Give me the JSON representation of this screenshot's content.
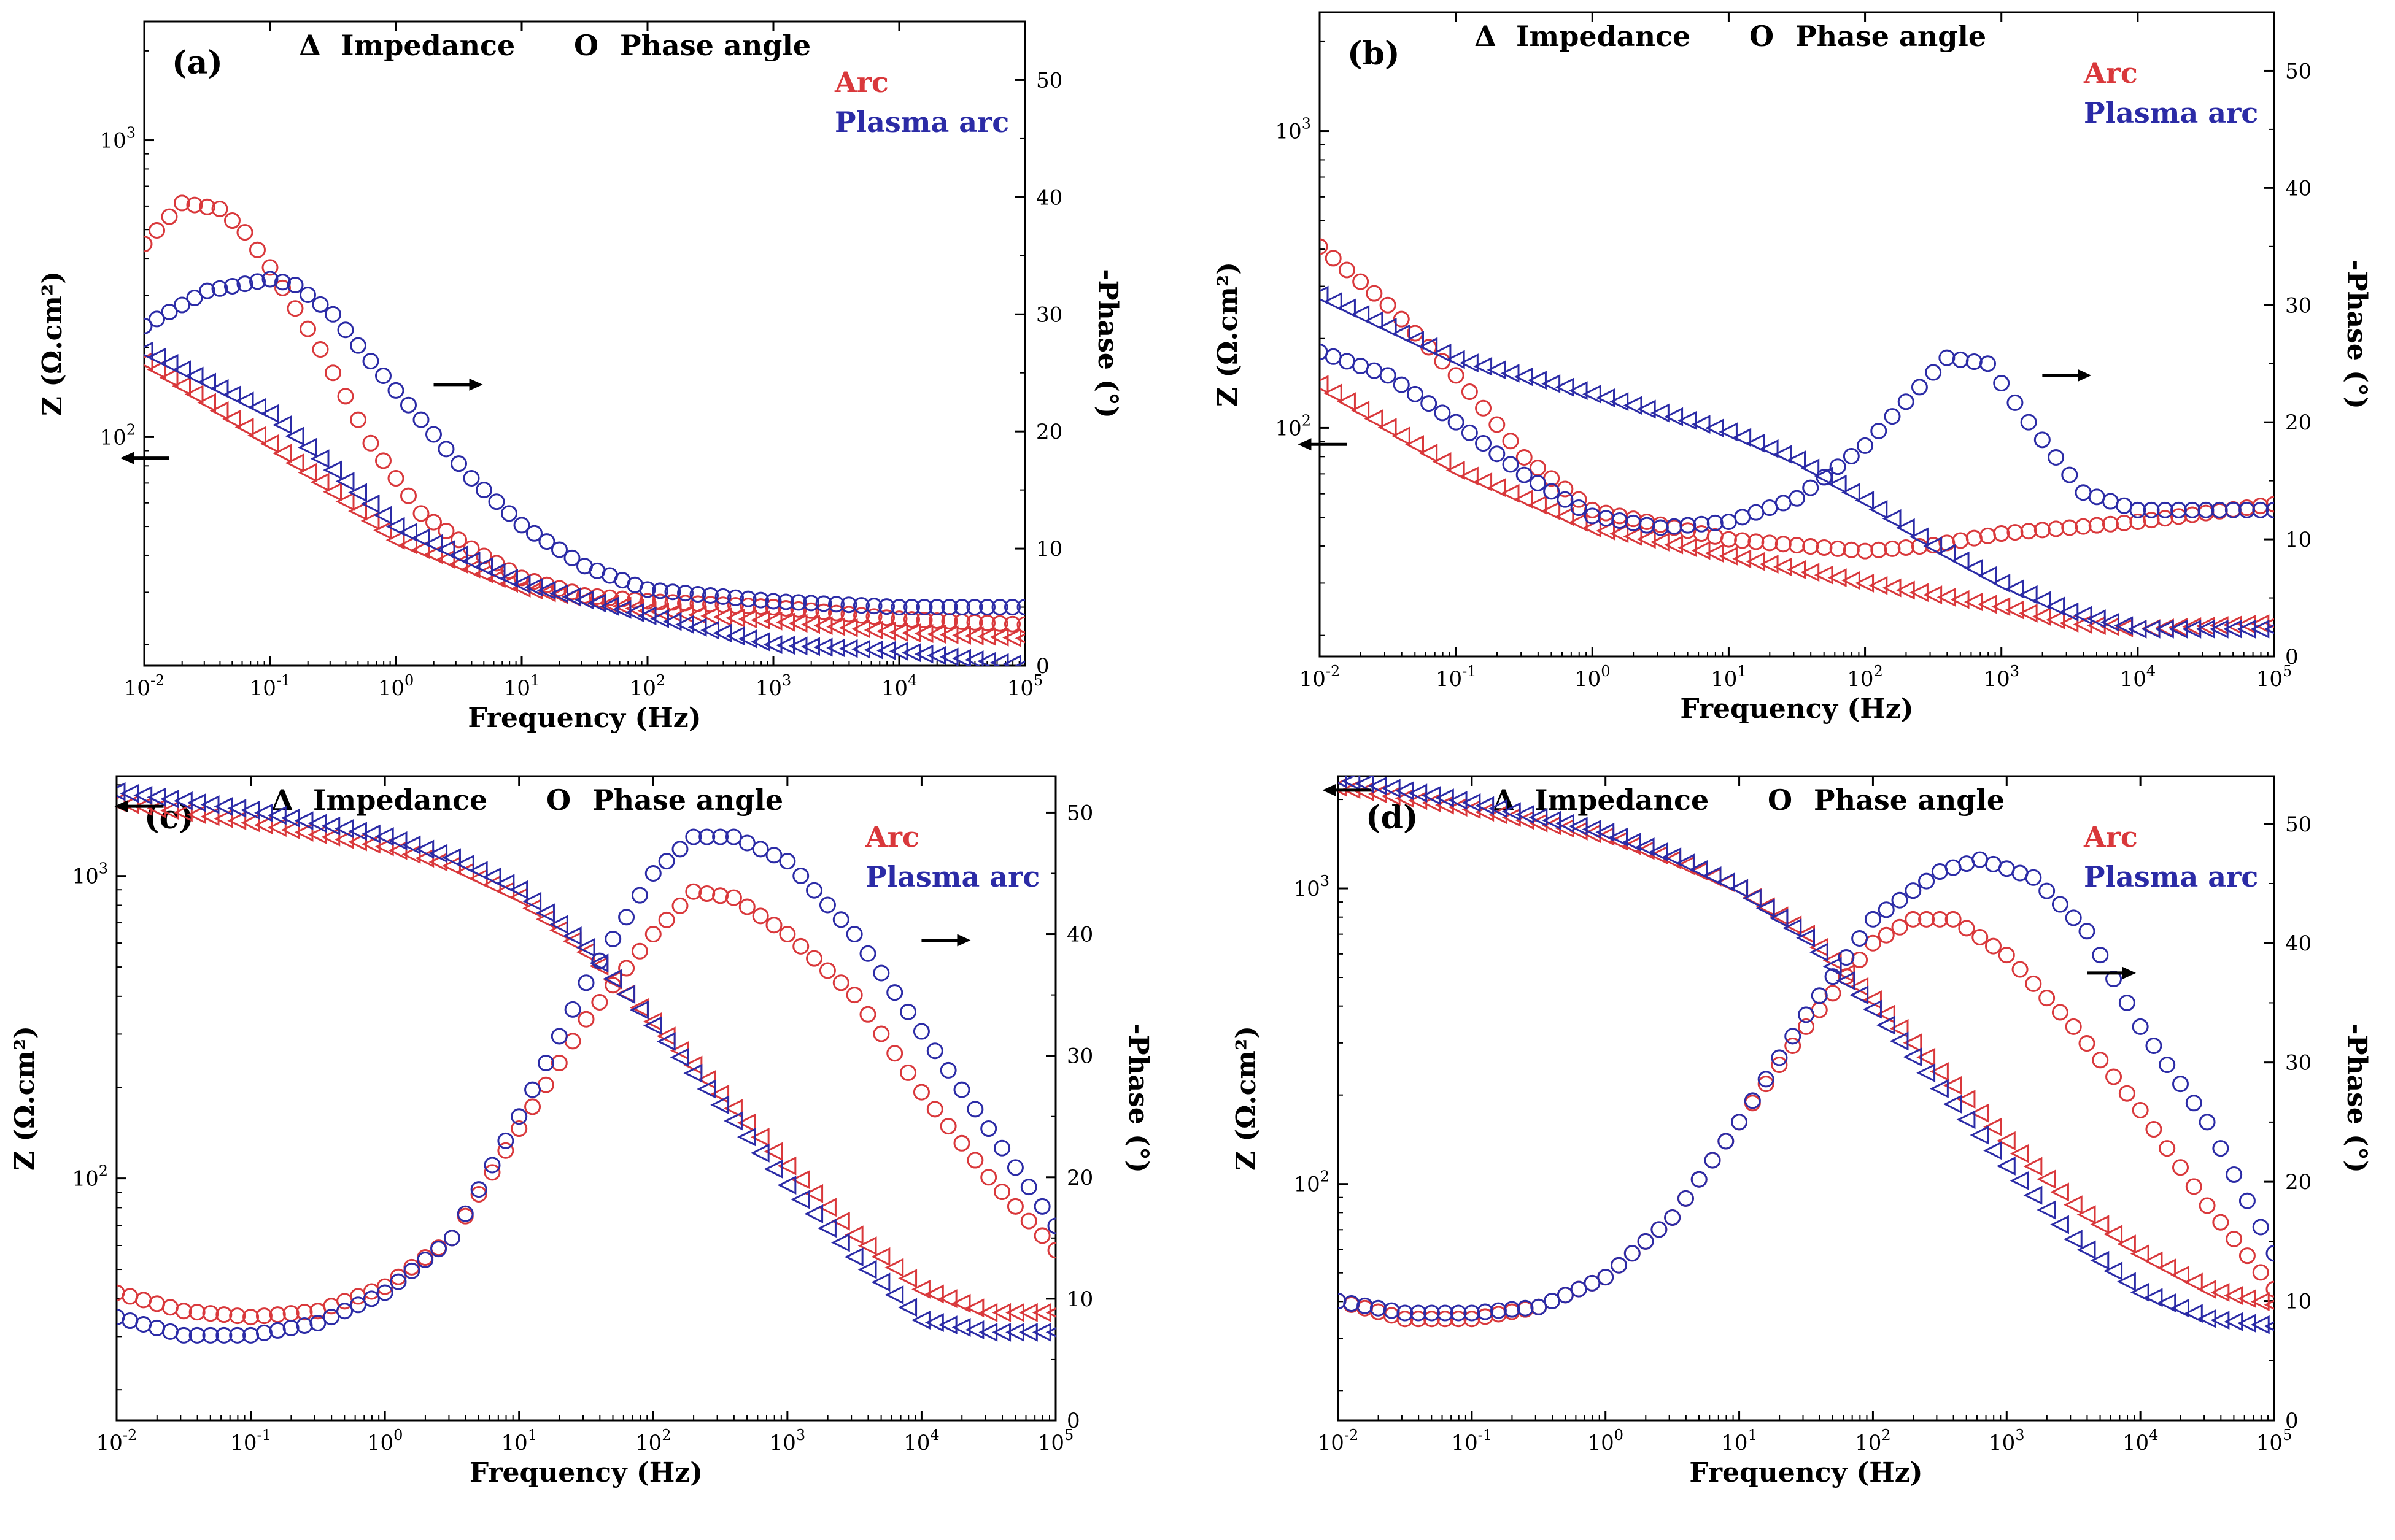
{
  "colors": {
    "arc": "#d9383b",
    "plasma_arc": "#2b2ba6",
    "axis": "#000000"
  },
  "chart_data": [
    {
      "type": "scatter",
      "panel": "(a)",
      "xlabel": "Frequency (Hz)",
      "ylabel_left": "Z (Ω.cm²)",
      "ylabel_right": "-Phase (°)",
      "xlim_log10": [
        -2,
        5
      ],
      "xticks": [
        "10-2",
        "10-1",
        "100",
        "101",
        "102",
        "103",
        "104",
        "105"
      ],
      "ylim_left_log10": [
        1.23,
        3.4
      ],
      "ylim_right": [
        0,
        55
      ],
      "yticks_left": [
        "102",
        "103"
      ],
      "yticks_right": [
        "0",
        "10",
        "20",
        "30",
        "40",
        "50"
      ],
      "legend_symbols": {
        "impedance": "Impedance",
        "phase": "Phase angle",
        "tri": "Δ",
        "circ": "O"
      },
      "series_names": {
        "arc": "Arc",
        "plasma": "Plasma arc"
      },
      "impedance": {
        "arc": [
          [
            -2,
            180
          ],
          [
            -1,
            95
          ],
          [
            0,
            45
          ],
          [
            1,
            31
          ],
          [
            2,
            26
          ],
          [
            3,
            24
          ],
          [
            4,
            22
          ],
          [
            5,
            21
          ]
        ],
        "plasma": [
          [
            -2,
            195
          ],
          [
            -1,
            120
          ],
          [
            0,
            50
          ],
          [
            1,
            32
          ],
          [
            2,
            25
          ],
          [
            3,
            20
          ],
          [
            4,
            19
          ],
          [
            5,
            17
          ]
        ]
      },
      "phase": {
        "arc": [
          [
            -2,
            36
          ],
          [
            -1.7,
            39.5
          ],
          [
            -1.4,
            39
          ],
          [
            -1.2,
            37
          ],
          [
            -1,
            34
          ],
          [
            -0.6,
            27
          ],
          [
            -0.2,
            19
          ],
          [
            0.2,
            13
          ],
          [
            0.6,
            10
          ],
          [
            1,
            7.5
          ],
          [
            1.5,
            6
          ],
          [
            2,
            5.5
          ],
          [
            3,
            5
          ],
          [
            4,
            4
          ],
          [
            5,
            3.5
          ]
        ],
        "plasma": [
          [
            -2,
            29
          ],
          [
            -1.5,
            32
          ],
          [
            -1,
            33
          ],
          [
            -0.8,
            32.5
          ],
          [
            -0.5,
            30
          ],
          [
            -0.2,
            26
          ],
          [
            0.2,
            21
          ],
          [
            0.6,
            16
          ],
          [
            1,
            12
          ],
          [
            1.5,
            8.5
          ],
          [
            2,
            6.5
          ],
          [
            3,
            5.5
          ],
          [
            4,
            5
          ],
          [
            5,
            5
          ]
        ]
      },
      "arrows": [
        {
          "dir": "left",
          "x": -1.8,
          "y": 85,
          "axis": "left"
        },
        {
          "dir": "right",
          "x": 0.3,
          "y": 24,
          "axis": "right"
        }
      ]
    },
    {
      "type": "scatter",
      "panel": "(b)",
      "xlabel": "Frequency (Hz)",
      "ylabel_left": "Z (Ω.cm²)",
      "ylabel_right": "-Phase (°)",
      "xlim_log10": [
        -2,
        5
      ],
      "xticks": [
        "10-2",
        "10-1",
        "100",
        "101",
        "102",
        "103",
        "104",
        "105"
      ],
      "ylim_left_log10": [
        1.23,
        3.4
      ],
      "ylim_right": [
        0,
        55
      ],
      "yticks_left": [
        "102",
        "103"
      ],
      "yticks_right": [
        "0",
        "10",
        "20",
        "30",
        "40",
        "50"
      ],
      "legend_symbols": {
        "impedance": "Impedance",
        "phase": "Phase angle",
        "tri": "Δ",
        "circ": "O"
      },
      "series_names": {
        "arc": "Arc",
        "plasma": "Plasma arc"
      },
      "impedance": {
        "arc": [
          [
            -2,
            140
          ],
          [
            -1,
            72
          ],
          [
            0,
            46
          ],
          [
            1,
            37
          ],
          [
            2,
            30
          ],
          [
            3,
            25
          ],
          [
            3.5,
            22
          ],
          [
            4,
            21
          ],
          [
            5,
            22
          ]
        ],
        "plasma": [
          [
            -2,
            280
          ],
          [
            -1,
            170
          ],
          [
            0,
            130
          ],
          [
            1,
            97
          ],
          [
            1.5,
            78
          ],
          [
            2,
            57
          ],
          [
            2.5,
            40
          ],
          [
            3,
            30
          ],
          [
            3.5,
            24
          ],
          [
            4,
            21
          ],
          [
            5,
            21
          ]
        ]
      },
      "phase": {
        "arc": [
          [
            -2,
            35
          ],
          [
            -1.5,
            30
          ],
          [
            -1,
            24
          ],
          [
            -0.5,
            17
          ],
          [
            0,
            12.5
          ],
          [
            1,
            10
          ],
          [
            2,
            9
          ],
          [
            2.5,
            9.5
          ],
          [
            3,
            10.5
          ],
          [
            4,
            11.5
          ],
          [
            5,
            13
          ]
        ],
        "plasma": [
          [
            -2,
            26
          ],
          [
            -1.5,
            24
          ],
          [
            -1,
            20
          ],
          [
            -0.5,
            15.5
          ],
          [
            0,
            12
          ],
          [
            0.5,
            11
          ],
          [
            1,
            11.5
          ],
          [
            1.5,
            13.5
          ],
          [
            2,
            18
          ],
          [
            2.4,
            23
          ],
          [
            2.6,
            25.5
          ],
          [
            2.9,
            25
          ],
          [
            3.2,
            20
          ],
          [
            3.6,
            14
          ],
          [
            4,
            12.5
          ],
          [
            5,
            12.5
          ]
        ]
      },
      "arrows": [
        {
          "dir": "left",
          "x": -1.8,
          "y": 88,
          "axis": "left"
        },
        {
          "dir": "right",
          "x": 3.3,
          "y": 24,
          "axis": "right"
        }
      ]
    },
    {
      "type": "scatter",
      "panel": "(c)",
      "xlabel": "Frequency (Hz)",
      "ylabel_left": "Z (Ω.cm²)",
      "ylabel_right": "-Phase (°)",
      "xlim_log10": [
        -2,
        5
      ],
      "xticks": [
        "10-2",
        "10-1",
        "100",
        "101",
        "102",
        "103",
        "104",
        "105"
      ],
      "ylim_left_log10": [
        1.2,
        3.33
      ],
      "ylim_right": [
        0,
        53
      ],
      "yticks_left": [
        "102",
        "103"
      ],
      "yticks_right": [
        "0",
        "10",
        "20",
        "30",
        "40",
        "50"
      ],
      "legend_symbols": {
        "impedance": "Impedance",
        "phase": "Phase angle",
        "tri": "Δ",
        "circ": "O"
      },
      "series_names": {
        "arc": "Arc",
        "plasma": "Plasma arc"
      },
      "impedance": {
        "arc": [
          [
            -2,
            1750
          ],
          [
            -1,
            1500
          ],
          [
            0,
            1250
          ],
          [
            0.5,
            1080
          ],
          [
            1,
            850
          ],
          [
            1.5,
            560
          ],
          [
            2,
            330
          ],
          [
            2.5,
            190
          ],
          [
            3,
            110
          ],
          [
            3.5,
            65
          ],
          [
            4,
            43
          ],
          [
            4.5,
            36
          ],
          [
            5,
            36
          ]
        ],
        "plasma": [
          [
            -2,
            1900
          ],
          [
            -1,
            1650
          ],
          [
            0,
            1350
          ],
          [
            0.5,
            1150
          ],
          [
            1,
            900
          ],
          [
            1.5,
            580
          ],
          [
            2,
            320
          ],
          [
            2.5,
            175
          ],
          [
            3,
            95
          ],
          [
            3.5,
            55
          ],
          [
            4,
            34
          ],
          [
            4.5,
            31
          ],
          [
            5,
            31
          ]
        ]
      },
      "phase": {
        "arc": [
          [
            -2,
            10.5
          ],
          [
            -1.5,
            9
          ],
          [
            -1,
            8.5
          ],
          [
            -0.5,
            9
          ],
          [
            0,
            11
          ],
          [
            0.5,
            15
          ],
          [
            1,
            24
          ],
          [
            1.5,
            33
          ],
          [
            2,
            40
          ],
          [
            2.3,
            43.5
          ],
          [
            2.6,
            43
          ],
          [
            3,
            40
          ],
          [
            3.5,
            35
          ],
          [
            4,
            27
          ],
          [
            4.5,
            20
          ],
          [
            5,
            14
          ]
        ],
        "plasma": [
          [
            -2,
            8.5
          ],
          [
            -1.5,
            7
          ],
          [
            -1,
            7
          ],
          [
            -0.5,
            8
          ],
          [
            0,
            10.5
          ],
          [
            0.5,
            15
          ],
          [
            1,
            25
          ],
          [
            1.5,
            36
          ],
          [
            2,
            45
          ],
          [
            2.3,
            48
          ],
          [
            2.6,
            48
          ],
          [
            3,
            46
          ],
          [
            3.5,
            40
          ],
          [
            4,
            32
          ],
          [
            4.5,
            24
          ],
          [
            5,
            16
          ]
        ]
      },
      "arrows": [
        {
          "dir": "left",
          "x": -1.65,
          "y": 1700,
          "axis": "left"
        },
        {
          "dir": "right",
          "x": 4.0,
          "y": 39.5,
          "axis": "right"
        }
      ]
    },
    {
      "type": "scatter",
      "panel": "(d)",
      "xlabel": "Frequency (Hz)",
      "ylabel_left": "Z (Ω.cm²)",
      "ylabel_right": "-Phase (°)",
      "xlim_log10": [
        -2,
        5
      ],
      "xticks": [
        "10-2",
        "10-1",
        "100",
        "101",
        "102",
        "103",
        "104",
        "105"
      ],
      "ylim_left_log10": [
        1.2,
        3.38
      ],
      "ylim_right": [
        0,
        54
      ],
      "yticks_left": [
        "102",
        "103"
      ],
      "yticks_right": [
        "0",
        "10",
        "20",
        "30",
        "40",
        "50"
      ],
      "legend_symbols": {
        "impedance": "Impedance",
        "phase": "Phase angle",
        "tri": "Δ",
        "circ": "O"
      },
      "series_names": {
        "arc": "Arc",
        "plasma": "Plasma arc"
      },
      "impedance": {
        "arc": [
          [
            -2,
            2200
          ],
          [
            -1,
            1850
          ],
          [
            0,
            1500
          ],
          [
            0.5,
            1250
          ],
          [
            1,
            1000
          ],
          [
            1.5,
            700
          ],
          [
            2,
            420
          ],
          [
            2.5,
            240
          ],
          [
            3,
            140
          ],
          [
            3.5,
            85
          ],
          [
            4,
            58
          ],
          [
            4.5,
            44
          ],
          [
            5,
            39
          ]
        ],
        "plasma": [
          [
            -2,
            2350
          ],
          [
            -1,
            1950
          ],
          [
            0,
            1550
          ],
          [
            0.5,
            1280
          ],
          [
            1,
            1000
          ],
          [
            1.5,
            680
          ],
          [
            2,
            390
          ],
          [
            2.5,
            210
          ],
          [
            3,
            115
          ],
          [
            3.5,
            65
          ],
          [
            4,
            43
          ],
          [
            4.5,
            35
          ],
          [
            5,
            33
          ]
        ]
      },
      "phase": {
        "arc": [
          [
            -2,
            10
          ],
          [
            -1.5,
            8.5
          ],
          [
            -1,
            8.5
          ],
          [
            -0.5,
            9.5
          ],
          [
            0,
            12
          ],
          [
            0.5,
            17
          ],
          [
            1,
            25
          ],
          [
            1.5,
            33
          ],
          [
            2,
            40
          ],
          [
            2.3,
            42
          ],
          [
            2.6,
            42
          ],
          [
            3,
            39
          ],
          [
            3.5,
            33
          ],
          [
            4,
            26
          ],
          [
            4.5,
            18
          ],
          [
            5,
            11
          ]
        ],
        "plasma": [
          [
            -2,
            10
          ],
          [
            -1.5,
            9
          ],
          [
            -1,
            9
          ],
          [
            -0.5,
            9.5
          ],
          [
            0,
            12
          ],
          [
            0.5,
            17
          ],
          [
            1,
            25
          ],
          [
            1.5,
            34
          ],
          [
            2,
            42
          ],
          [
            2.5,
            46
          ],
          [
            2.8,
            47
          ],
          [
            3.2,
            45.5
          ],
          [
            3.6,
            41
          ],
          [
            4,
            33
          ],
          [
            4.5,
            25
          ],
          [
            5,
            14
          ]
        ]
      },
      "arrows": [
        {
          "dir": "left",
          "x": -1.75,
          "y": 2150,
          "axis": "left"
        },
        {
          "dir": "right",
          "x": 3.6,
          "y": 37.5,
          "axis": "right"
        }
      ]
    }
  ]
}
